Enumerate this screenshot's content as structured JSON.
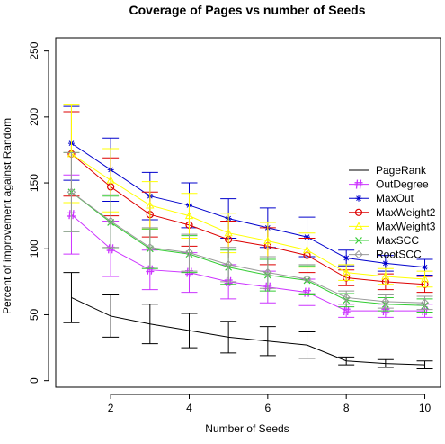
{
  "chart_data": {
    "type": "line",
    "title": "Coverage of Pages vs number of Seeds",
    "xlabel": "Number of Seeds",
    "ylabel": "Percent of improvement against Random",
    "xlim": [
      0.6,
      10.4
    ],
    "ylim": [
      -5,
      260
    ],
    "xticks": [
      2,
      4,
      6,
      8,
      10
    ],
    "yticks": [
      0,
      50,
      100,
      150,
      200,
      250
    ],
    "grid": false,
    "legend_position": "right",
    "x": [
      1,
      2,
      3,
      4,
      5,
      6,
      7,
      8,
      9,
      10
    ],
    "series": [
      {
        "name": "PageRank",
        "color": "#000000",
        "marker": "none",
        "values": [
          63,
          49,
          43,
          38,
          33,
          30,
          27,
          15,
          13,
          12
        ],
        "err": [
          19,
          16,
          15,
          13,
          12,
          11,
          10,
          3,
          3,
          3
        ]
      },
      {
        "name": "OutDegree",
        "color": "#cc33ff",
        "marker": "hash",
        "values": [
          126,
          100,
          84,
          82,
          75,
          71,
          67,
          53,
          53,
          53
        ],
        "err": [
          30,
          21,
          15,
          15,
          13,
          12,
          10,
          5,
          5,
          5
        ]
      },
      {
        "name": "MaxOut",
        "color": "#0000cc",
        "marker": "star",
        "values": [
          180,
          160,
          140,
          133,
          123,
          116,
          109,
          93,
          89,
          86
        ],
        "err": [
          28,
          24,
          18,
          17,
          15,
          15,
          15,
          6,
          6,
          6
        ]
      },
      {
        "name": "MaxWeight2",
        "color": "#dd0000",
        "marker": "circle",
        "values": [
          172,
          147,
          126,
          118,
          107,
          102,
          95,
          78,
          75,
          73
        ],
        "err": [
          32,
          22,
          17,
          16,
          14,
          14,
          13,
          6,
          6,
          6
        ]
      },
      {
        "name": "MaxWeight3",
        "color": "#ffff00",
        "marker": "triangle",
        "values": [
          172,
          152,
          133,
          125,
          112,
          106,
          99,
          82,
          79,
          77
        ],
        "err": [
          37,
          24,
          18,
          17,
          15,
          14,
          13,
          6,
          6,
          6
        ]
      },
      {
        "name": "MaxSCC",
        "color": "#33cc33",
        "marker": "x",
        "values": [
          143,
          120,
          100,
          96,
          86,
          80,
          76,
          61,
          58,
          57
        ],
        "err": [
          30,
          20,
          15,
          14,
          13,
          12,
          11,
          5,
          5,
          5
        ]
      },
      {
        "name": "RootSCC",
        "color": "#999999",
        "marker": "diamond",
        "values": [
          143,
          121,
          101,
          97,
          88,
          82,
          77,
          63,
          60,
          59
        ],
        "err": [
          30,
          20,
          15,
          14,
          13,
          12,
          11,
          5,
          5,
          5
        ]
      }
    ]
  }
}
